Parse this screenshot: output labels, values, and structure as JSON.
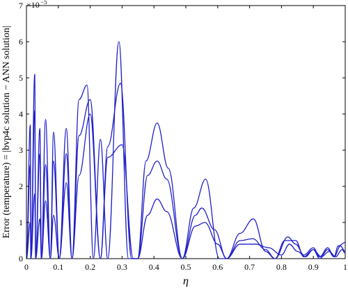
{
  "chart_data": {
    "type": "line",
    "title": "",
    "xlabel": "η",
    "ylabel": "Error (temperature) = |bvp4c solution − ANN solution|",
    "y_exponent_label": "×10",
    "y_exponent_power": "−5",
    "xlim": [
      0,
      1
    ],
    "ylim": [
      0,
      7
    ],
    "grid": false,
    "legend": "none",
    "x_ticks": [
      0,
      0.1,
      0.2,
      0.3,
      0.4,
      0.5,
      0.6,
      0.7,
      0.8,
      0.9,
      1
    ],
    "x_tick_labels": [
      "0",
      "0.1",
      "0.2",
      "0.3",
      "0.4",
      "0.5",
      "0.6",
      "0.7",
      "0.8",
      "0.9",
      "1"
    ],
    "y_ticks": [
      0,
      1,
      2,
      3,
      4,
      5,
      6,
      7
    ],
    "y_tick_labels": [
      "0",
      "1",
      "2",
      "3",
      "4",
      "5",
      "6",
      "7"
    ],
    "line_color": "#1f1fc8",
    "series": [
      {
        "x": [
          0,
          0.012,
          0.014,
          0.026,
          0.029,
          0.042,
          0.047,
          0.06,
          0.075,
          0.085,
          0.103,
          0.125,
          0.143,
          0.165,
          0.19,
          0.21,
          0.232,
          0.255,
          0.29,
          0.32,
          0.349,
          0.375,
          0.41,
          0.445,
          0.489,
          0.525,
          0.562,
          0.605,
          0.628,
          0.67,
          0.712,
          0.75,
          0.78,
          0.81,
          0.845,
          0.87,
          0.9,
          0.92,
          0.945,
          0.965,
          0.978,
          1
        ],
        "y": [
          0,
          3.7,
          0,
          5.1,
          0,
          3.6,
          0,
          3.85,
          0,
          3.5,
          0,
          3.6,
          0,
          4.4,
          4.8,
          0,
          3.3,
          0,
          6.0,
          0,
          0,
          2.7,
          3.75,
          2.5,
          0,
          1.4,
          2.2,
          0,
          0,
          0.7,
          1.1,
          0.2,
          0,
          0.5,
          0.5,
          0.05,
          0.25,
          0,
          0.25,
          0.05,
          0.35,
          0.45
        ]
      },
      {
        "x": [
          0,
          0.012,
          0.014,
          0.026,
          0.029,
          0.042,
          0.047,
          0.06,
          0.075,
          0.085,
          0.103,
          0.125,
          0.143,
          0.165,
          0.2,
          0.232,
          0.255,
          0.295,
          0.33,
          0.349,
          0.38,
          0.41,
          0.44,
          0.489,
          0.53,
          0.55,
          0.59,
          0.628,
          0.67,
          0.71,
          0.75,
          0.78,
          0.82,
          0.845,
          0.87,
          0.9,
          0.92,
          0.945,
          0.965,
          0.985,
          1
        ],
        "y": [
          0,
          2.6,
          0,
          4.1,
          0,
          2.9,
          0,
          2.6,
          0,
          2.7,
          0,
          2.9,
          0,
          3.4,
          4.4,
          0,
          3.1,
          4.85,
          0,
          0,
          2.3,
          2.7,
          2.2,
          0,
          1.2,
          1.4,
          0.8,
          0,
          0.5,
          0.55,
          0.25,
          0,
          0.6,
          0.4,
          0.1,
          0.3,
          0.05,
          0.3,
          0.05,
          0.35,
          0.2
        ]
      },
      {
        "x": [
          0,
          0.012,
          0.014,
          0.026,
          0.029,
          0.042,
          0.047,
          0.06,
          0.075,
          0.085,
          0.103,
          0.125,
          0.143,
          0.165,
          0.2,
          0.232,
          0.255,
          0.3,
          0.335,
          0.349,
          0.38,
          0.41,
          0.44,
          0.489,
          0.53,
          0.56,
          0.6,
          0.628,
          0.67,
          0.72,
          0.76,
          0.8,
          0.825,
          0.85,
          0.875,
          0.9,
          0.925,
          0.95,
          0.97,
          0.99,
          1
        ],
        "y": [
          0,
          1.0,
          0,
          1.8,
          0,
          1.1,
          0,
          1.6,
          0,
          1.2,
          0,
          2.1,
          0,
          2.3,
          4.0,
          0,
          2.8,
          3.15,
          0,
          0,
          1.2,
          1.65,
          1.3,
          0,
          0.9,
          1.0,
          0.4,
          0,
          0.4,
          0.4,
          0.3,
          0.1,
          0.4,
          0.2,
          0.05,
          0.25,
          0.05,
          0.2,
          0.05,
          0.25,
          0.15
        ]
      }
    ]
  }
}
